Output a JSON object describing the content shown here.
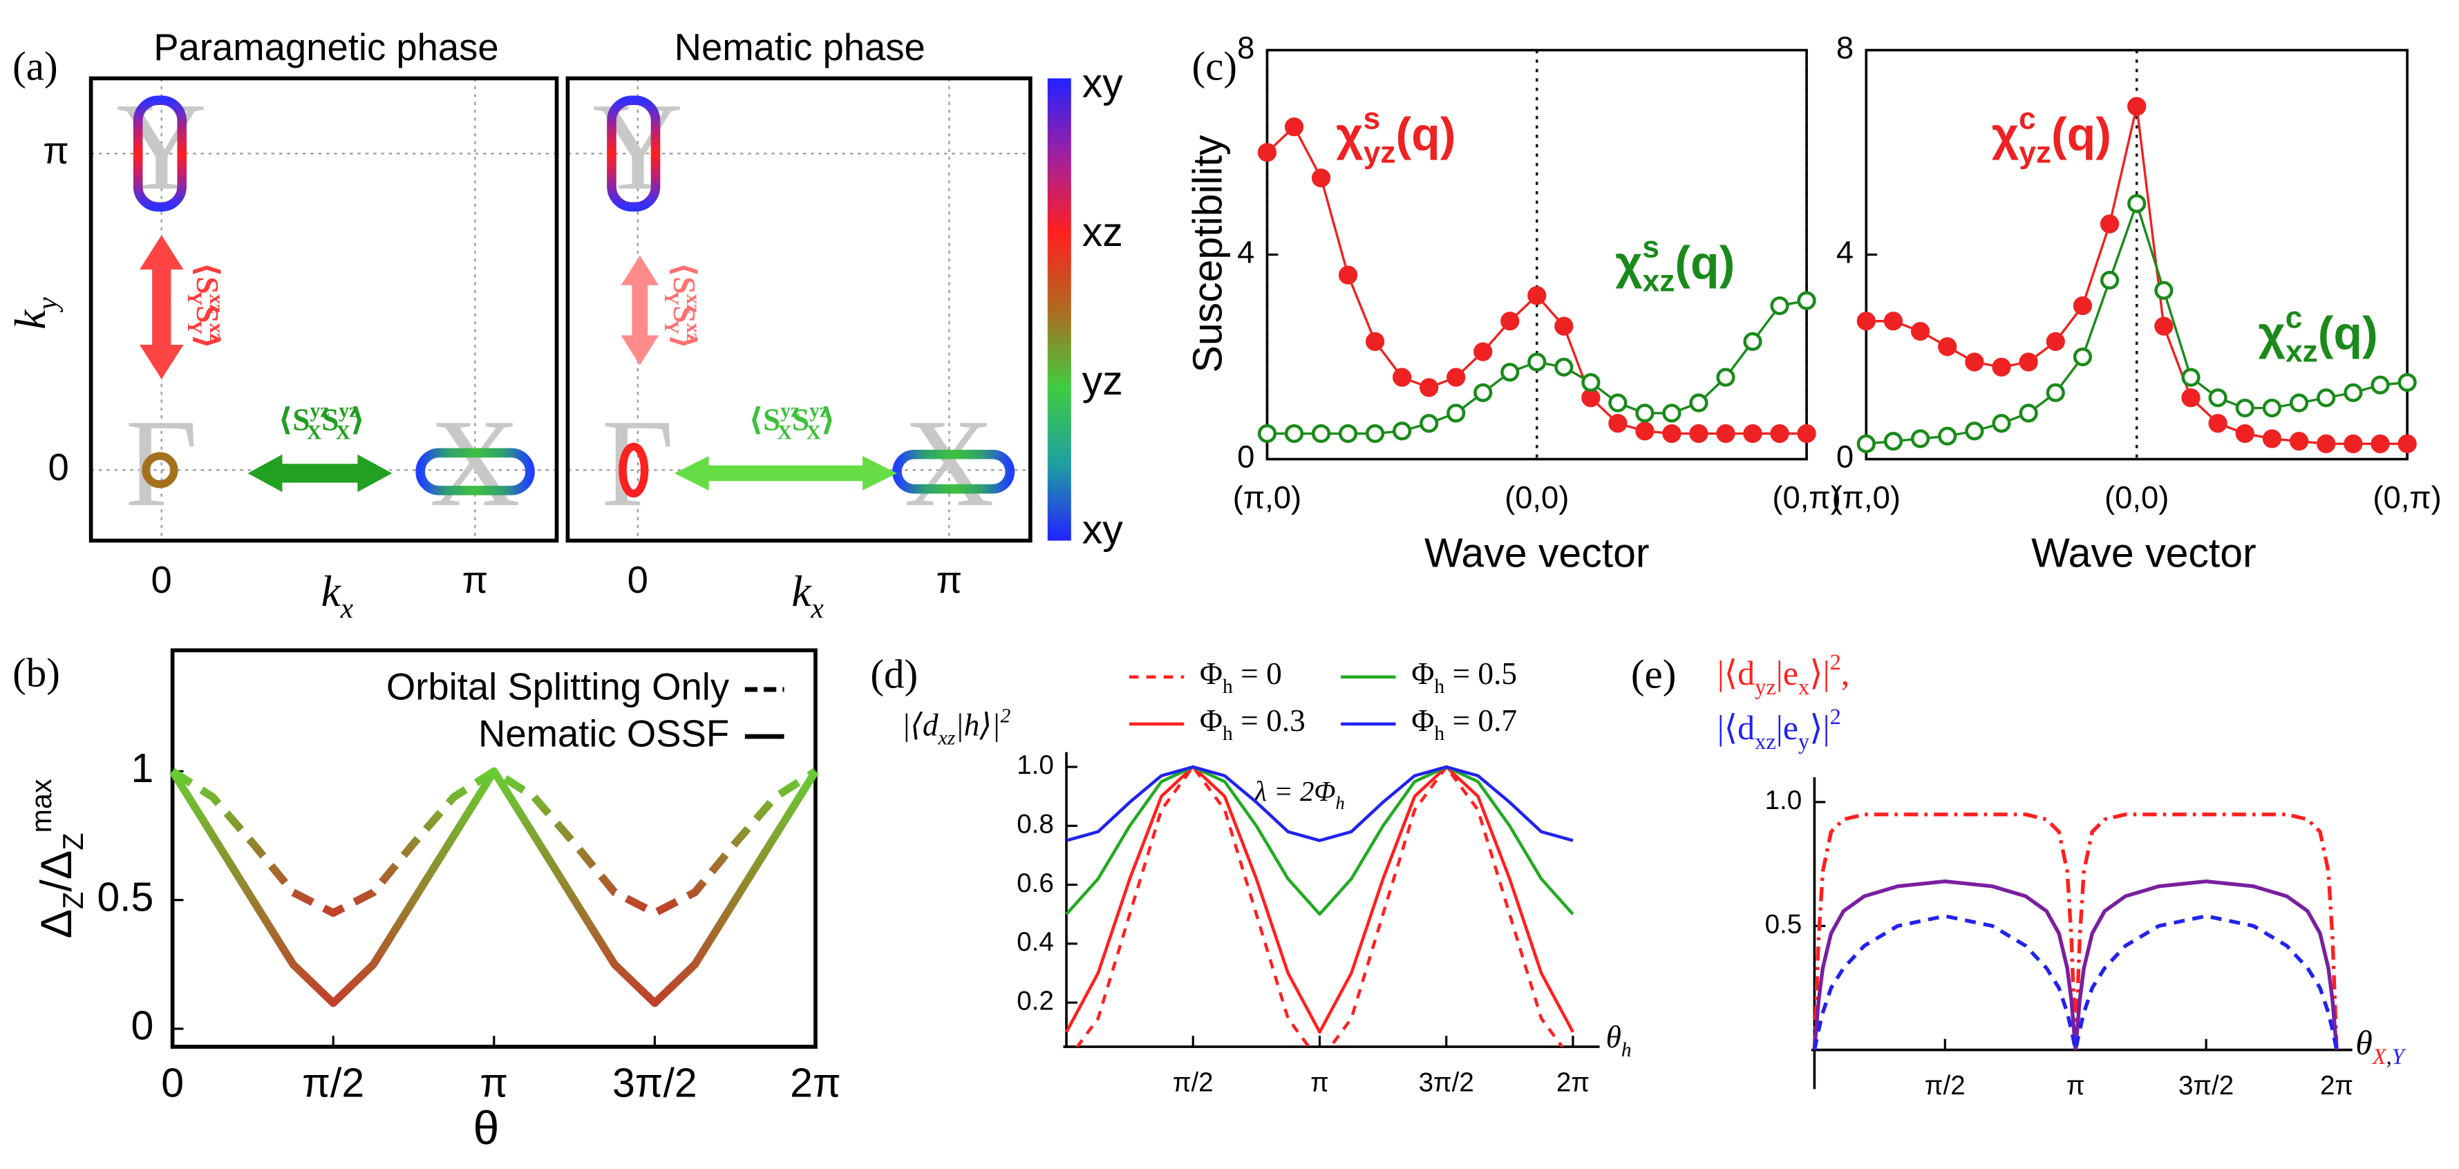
{
  "chart_data": [
    {
      "type": "fermi",
      "panel": "(a)",
      "title": "Paramagnetic phase",
      "xlabel": [
        "k",
        [
          "x",
          "sub"
        ]
      ],
      "ylabel": [
        "k",
        [
          "y",
          "sub"
        ]
      ],
      "xlim": [
        -0.707,
        3.96
      ],
      "ylim": [
        -0.7,
        3.888
      ],
      "xticks": [
        0,
        {
          "value": 3.1416,
          "label": "π"
        }
      ],
      "yticks": [
        0,
        {
          "value": 3.1416,
          "label": "π"
        }
      ],
      "grid": true,
      "points": [
        {
          "label": "Γ",
          "x": 0,
          "y": 0
        },
        {
          "label": "X",
          "x": 3.1416,
          "y": 0
        },
        {
          "label": "Y",
          "x": 0,
          "y": 3.1416
        }
      ],
      "annotations": [
        {
          "text": [
            "⟨S",
            [
              "xz",
              "sup"
            ],
            [
              "Y",
              "sub"
            ],
            "S",
            [
              "xz",
              "sup"
            ],
            [
              "Y",
              "sub"
            ],
            "⟩"
          ],
          "color": "#ff3b3b"
        },
        {
          "text": [
            "⟨S",
            [
              "yz",
              "sup"
            ],
            [
              "X",
              "sub"
            ],
            "S",
            [
              "yz",
              "sup"
            ],
            [
              "X",
              "sub"
            ],
            "⟩"
          ],
          "color": "#1f9e1f"
        }
      ]
    },
    {
      "type": "fermi",
      "title": "Nematic phase",
      "xlabel": [
        "k",
        [
          "x",
          "sub"
        ]
      ],
      "xlim": [
        -0.707,
        3.96
      ],
      "ylim": [
        -0.7,
        3.888
      ],
      "xticks": [
        0,
        {
          "value": 3.1416,
          "label": "π"
        }
      ],
      "yticks": [
        0,
        3.1416
      ],
      "grid": true,
      "points": [
        {
          "label": "Γ",
          "x": 0,
          "y": 0
        },
        {
          "label": "X",
          "x": 3.1416,
          "y": 0
        },
        {
          "label": "Y",
          "x": 0,
          "y": 3.1416
        }
      ],
      "annotations": [
        {
          "text": [
            "⟨S",
            [
              "xz",
              "sup"
            ],
            [
              "Y",
              "sub"
            ],
            "S",
            [
              "xz",
              "sup"
            ],
            [
              "Y",
              "sub"
            ],
            "⟩"
          ],
          "color": "#ff7070"
        },
        {
          "text": [
            "⟨S",
            [
              "yz",
              "sup"
            ],
            [
              "X",
              "sub"
            ],
            "S",
            [
              "yz",
              "sup"
            ],
            [
              "X",
              "sub"
            ],
            "⟩"
          ],
          "color": "#3cc03c"
        }
      ],
      "colorbar": {
        "labels": [
          "xy",
          "xz",
          "yz",
          "xy"
        ],
        "colors": [
          "#2222ff",
          "#a020a0",
          "#ff2020",
          "#b06a20",
          "#40cc40",
          "#20a0a0",
          "#2222ff"
        ]
      }
    },
    {
      "type": "line",
      "panel": "(b)",
      "xlabel": "θ",
      "ylabel": [
        "Δ",
        [
          "Z",
          "sub"
        ],
        "/Δ",
        [
          "Z",
          "sub"
        ],
        [
          "max",
          "sup"
        ]
      ],
      "x": [
        0,
        0.3927,
        0.7854,
        1.1781,
        1.5708,
        1.9635,
        2.3562,
        2.7489,
        3.1416,
        3.5343,
        3.927,
        4.3197,
        4.7124,
        5.1051,
        5.4978,
        5.8905,
        6.2832
      ],
      "xlim": [
        0,
        6.2832
      ],
      "ylim": [
        -0.07,
        1.47
      ],
      "xticks": [
        0,
        {
          "value": 1.5708,
          "label": "π/2"
        },
        {
          "value": 3.1416,
          "label": "π"
        },
        {
          "value": 4.7124,
          "label": "3π/2"
        },
        {
          "value": 6.2832,
          "label": "2π"
        }
      ],
      "yticks": [
        0,
        0.5,
        1
      ],
      "colors": [
        "#66cc33",
        "#c0402a"
      ],
      "legend": "upper right",
      "series": [
        {
          "name": "Orbital Splitting Only",
          "dash": "dashed",
          "values": [
            1,
            0.9,
            0.72,
            0.53,
            0.45,
            0.53,
            0.72,
            0.9,
            1,
            0.9,
            0.72,
            0.53,
            0.45,
            0.53,
            0.72,
            0.9,
            1
          ]
        },
        {
          "name": "Nematic OSSF",
          "values": [
            1,
            0.75,
            0.5,
            0.25,
            0.1,
            0.25,
            0.5,
            0.75,
            1,
            0.75,
            0.5,
            0.25,
            0.1,
            0.25,
            0.5,
            0.75,
            1
          ]
        }
      ]
    },
    {
      "type": "line",
      "panel": "(c)",
      "xlabel": "Wave vector",
      "ylabel": "Susceptibility",
      "x": [
        0,
        2,
        4,
        6,
        8,
        10,
        12,
        14,
        16,
        18,
        20,
        22,
        24,
        26,
        28,
        30,
        32,
        34,
        36,
        38,
        40
      ],
      "xlim": [
        0,
        40
      ],
      "ylim": [
        0,
        8
      ],
      "xticks": [
        {
          "value": 0,
          "label": "(π,0)"
        },
        {
          "value": 20,
          "label": "(0,0)"
        },
        {
          "value": 40,
          "label": "(0,π)"
        }
      ],
      "yticks": [
        0,
        4,
        8
      ],
      "grid": "x",
      "series": [
        {
          "name": [
            "χ",
            [
              "s",
              "sup"
            ],
            [
              "yz",
              "sub"
            ],
            "(q)"
          ],
          "color": "#ee2222",
          "marker": "filled",
          "values": [
            6.0,
            6.5,
            5.5,
            3.6,
            2.3,
            1.6,
            1.4,
            1.6,
            2.1,
            2.7,
            3.2,
            2.6,
            1.2,
            0.7,
            0.55,
            0.5,
            0.5,
            0.5,
            0.5,
            0.5,
            0.5
          ]
        },
        {
          "name": [
            "χ",
            [
              "s",
              "sup"
            ],
            [
              "xz",
              "sub"
            ],
            "(q)"
          ],
          "color": "#1a8a1a",
          "marker": "open",
          "values": [
            0.5,
            0.5,
            0.5,
            0.5,
            0.5,
            0.55,
            0.7,
            0.9,
            1.3,
            1.7,
            1.9,
            1.8,
            1.5,
            1.1,
            0.9,
            0.9,
            1.1,
            1.6,
            2.3,
            3.0,
            3.1
          ]
        }
      ]
    },
    {
      "type": "line",
      "xlabel": "Wave vector",
      "x": [
        0,
        2,
        4,
        6,
        8,
        10,
        12,
        14,
        16,
        18,
        20,
        22,
        24,
        26,
        28,
        30,
        32,
        34,
        36,
        38,
        40
      ],
      "xlim": [
        0,
        40
      ],
      "ylim": [
        0,
        8
      ],
      "xticks": [
        {
          "value": 0,
          "label": "(π,0)"
        },
        {
          "value": 20,
          "label": "(0,0)"
        },
        {
          "value": 40,
          "label": "(0,π)"
        }
      ],
      "yticks": [
        0,
        4,
        8
      ],
      "grid": "x",
      "series": [
        {
          "name": [
            "χ",
            [
              "c",
              "sup"
            ],
            [
              "yz",
              "sub"
            ],
            "(q)"
          ],
          "color": "#ee2222",
          "marker": "filled",
          "values": [
            2.7,
            2.7,
            2.5,
            2.2,
            1.9,
            1.8,
            1.9,
            2.3,
            3.0,
            4.6,
            6.9,
            2.6,
            1.2,
            0.7,
            0.5,
            0.4,
            0.35,
            0.3,
            0.3,
            0.3,
            0.3
          ]
        },
        {
          "name": [
            "χ",
            [
              "c",
              "sup"
            ],
            [
              "xz",
              "sub"
            ],
            "(q)"
          ],
          "color": "#1a8a1a",
          "marker": "open",
          "values": [
            0.3,
            0.35,
            0.4,
            0.45,
            0.55,
            0.7,
            0.9,
            1.3,
            2.0,
            3.5,
            5.0,
            3.3,
            1.6,
            1.2,
            1.0,
            1.0,
            1.1,
            1.2,
            1.3,
            1.45,
            1.5
          ]
        }
      ]
    },
    {
      "type": "line",
      "panel": "(d)",
      "xlabel": [
        "θ",
        [
          "h",
          "sub"
        ]
      ],
      "ylabel": [
        "|⟨d",
        [
          "xz",
          "sub"
        ],
        "|h⟩|",
        [
          "2",
          "sup"
        ]
      ],
      "annotation": [
        "λ = 2Φ",
        [
          "h",
          "sub"
        ]
      ],
      "x": [
        0,
        0.3927,
        0.7854,
        1.1781,
        1.5708,
        1.9635,
        2.3562,
        2.7489,
        3.1416,
        3.5343,
        3.927,
        4.3197,
        4.7124,
        5.1051,
        5.4978,
        5.8905,
        6.2832
      ],
      "xlim": [
        0,
        6.2832
      ],
      "ylim": [
        0.05,
        1.05
      ],
      "xticks": [
        {
          "value": 1.5708,
          "label": "π/2"
        },
        {
          "value": 3.1416,
          "label": "π"
        },
        {
          "value": 4.7124,
          "label": "3π/2"
        },
        {
          "value": 6.2832,
          "label": "2π"
        }
      ],
      "yticks": [
        0.2,
        0.4,
        0.6,
        0.8,
        {
          "value": 1,
          "label": "1.0"
        }
      ],
      "series": [
        {
          "name": [
            "Φ",
            [
              "h",
              "sub"
            ],
            " = 0"
          ],
          "color": "#ff2020",
          "dash": "dashed",
          "values": [
            0,
            0.146,
            0.5,
            0.854,
            1,
            0.854,
            0.5,
            0.146,
            0,
            0.146,
            0.5,
            0.854,
            1,
            0.854,
            0.5,
            0.146,
            0
          ]
        },
        {
          "name": [
            "Φ",
            [
              "h",
              "sub"
            ],
            " = 0.3"
          ],
          "color": "#ff2020",
          "values": [
            0.1,
            0.3,
            0.62,
            0.9,
            1,
            0.9,
            0.62,
            0.3,
            0.1,
            0.3,
            0.62,
            0.9,
            1,
            0.9,
            0.62,
            0.3,
            0.1
          ]
        },
        {
          "name": [
            "Φ",
            [
              "h",
              "sub"
            ],
            " = 0.5"
          ],
          "color": "#22aa22",
          "values": [
            0.5,
            0.62,
            0.8,
            0.95,
            1,
            0.95,
            0.8,
            0.62,
            0.5,
            0.62,
            0.8,
            0.95,
            1,
            0.95,
            0.8,
            0.62,
            0.5
          ]
        },
        {
          "name": [
            "Φ",
            [
              "h",
              "sub"
            ],
            " = 0.7"
          ],
          "color": "#2222ee",
          "values": [
            0.75,
            0.78,
            0.88,
            0.97,
            1,
            0.97,
            0.88,
            0.78,
            0.75,
            0.78,
            0.88,
            0.97,
            1,
            0.97,
            0.88,
            0.78,
            0.75
          ]
        }
      ]
    },
    {
      "type": "line",
      "panel": "(e)",
      "xlabel": [
        "θ",
        [
          "X",
          "sub",
          "#ff2020"
        ],
        [
          ",",
          "sub"
        ],
        [
          "Y",
          "sub",
          "#2222ee"
        ]
      ],
      "x": [
        0,
        0.05,
        0.1,
        0.2,
        0.35,
        0.6,
        1.0,
        1.5708,
        2.1416,
        2.5416,
        2.7916,
        2.9416,
        3.0416,
        3.0916,
        3.1416,
        3.1916,
        3.2416,
        3.3416,
        3.4916,
        3.7416,
        4.1416,
        4.7124,
        5.2832,
        5.6832,
        5.9332,
        6.0832,
        6.1832,
        6.2332,
        6.2832
      ],
      "xlim": [
        0,
        6.2832
      ],
      "ylim": [
        0,
        1.1
      ],
      "xticks": [
        {
          "value": 1.5708,
          "label": "π/2"
        },
        {
          "value": 3.1416,
          "label": "π"
        },
        {
          "value": 4.7124,
          "label": "3π/2"
        },
        {
          "value": 6.2832,
          "label": "2π"
        }
      ],
      "yticks": [
        0.5,
        {
          "value": 1,
          "label": "1.0"
        }
      ],
      "series": [
        {
          "name": [
            "|⟨d",
            [
              "yz",
              "sub"
            ],
            "|e",
            [
              "x",
              "sub"
            ],
            "⟩|",
            [
              "2",
              "sup"
            ],
            ","
          ],
          "color": "#ff2020",
          "dash": "dashdot",
          "values": [
            0,
            0.45,
            0.72,
            0.88,
            0.93,
            0.95,
            0.95,
            0.95,
            0.95,
            0.95,
            0.93,
            0.88,
            0.72,
            0.45,
            0,
            0.45,
            0.72,
            0.88,
            0.93,
            0.95,
            0.95,
            0.95,
            0.95,
            0.95,
            0.93,
            0.88,
            0.72,
            0.45,
            0
          ]
        },
        {
          "color": "#7a1fa0",
          "values": [
            0,
            0.2,
            0.33,
            0.47,
            0.56,
            0.62,
            0.66,
            0.68,
            0.66,
            0.62,
            0.56,
            0.47,
            0.33,
            0.2,
            0,
            0.2,
            0.33,
            0.47,
            0.56,
            0.62,
            0.66,
            0.68,
            0.66,
            0.62,
            0.56,
            0.47,
            0.33,
            0.2,
            0
          ]
        },
        {
          "name": [
            "|⟨d",
            [
              "xz",
              "sub"
            ],
            "|e",
            [
              "y",
              "sub"
            ],
            "⟩|",
            [
              "2",
              "sup"
            ]
          ],
          "color": "#2222ee",
          "dash": "dashed",
          "values": [
            0,
            0.08,
            0.15,
            0.25,
            0.33,
            0.42,
            0.5,
            0.54,
            0.5,
            0.42,
            0.33,
            0.25,
            0.15,
            0.08,
            0,
            0.08,
            0.15,
            0.25,
            0.33,
            0.42,
            0.5,
            0.54,
            0.5,
            0.42,
            0.33,
            0.25,
            0.15,
            0.08,
            0
          ]
        }
      ]
    }
  ]
}
